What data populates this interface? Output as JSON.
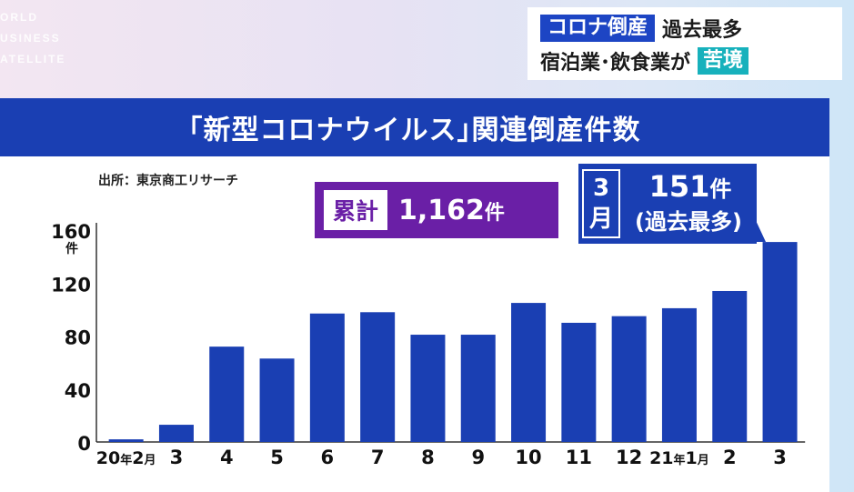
{
  "logo": [
    "WORLD",
    "BUSINESS",
    "SATELLITE"
  ],
  "logo_visible": [
    "ORLD",
    "USINESS",
    "ATELLITE"
  ],
  "headline": {
    "line1_tag": "コロナ倒産",
    "line1_text": "過去最多",
    "line2_text": "宿泊業･飲食業が",
    "line2_tag": "苦境",
    "tag_color": "#1d45c4",
    "accent_color": "#17b1bc"
  },
  "chart_data": {
    "type": "bar",
    "title": "｢新型コロナウイルス｣関連倒産件数",
    "source": "出所：東京商工リサーチ",
    "ylabel": "件",
    "ylim": [
      0,
      160
    ],
    "yticks": [
      0,
      40,
      80,
      120,
      160
    ],
    "categories": [
      "20年2月",
      "3",
      "4",
      "5",
      "6",
      "7",
      "8",
      "9",
      "10",
      "11",
      "12",
      "21年1月",
      "2",
      "3"
    ],
    "values": [
      2,
      13,
      72,
      63,
      97,
      98,
      81,
      81,
      105,
      90,
      95,
      101,
      114,
      151
    ],
    "bar_color": "#1a3fb3",
    "total": {
      "label": "累計",
      "value": "1,162",
      "unit": "件",
      "color": "#6a1fa6"
    },
    "callout": {
      "month": [
        "3",
        "月"
      ],
      "value": "151",
      "unit": "件",
      "note": "(過去最多)"
    }
  }
}
